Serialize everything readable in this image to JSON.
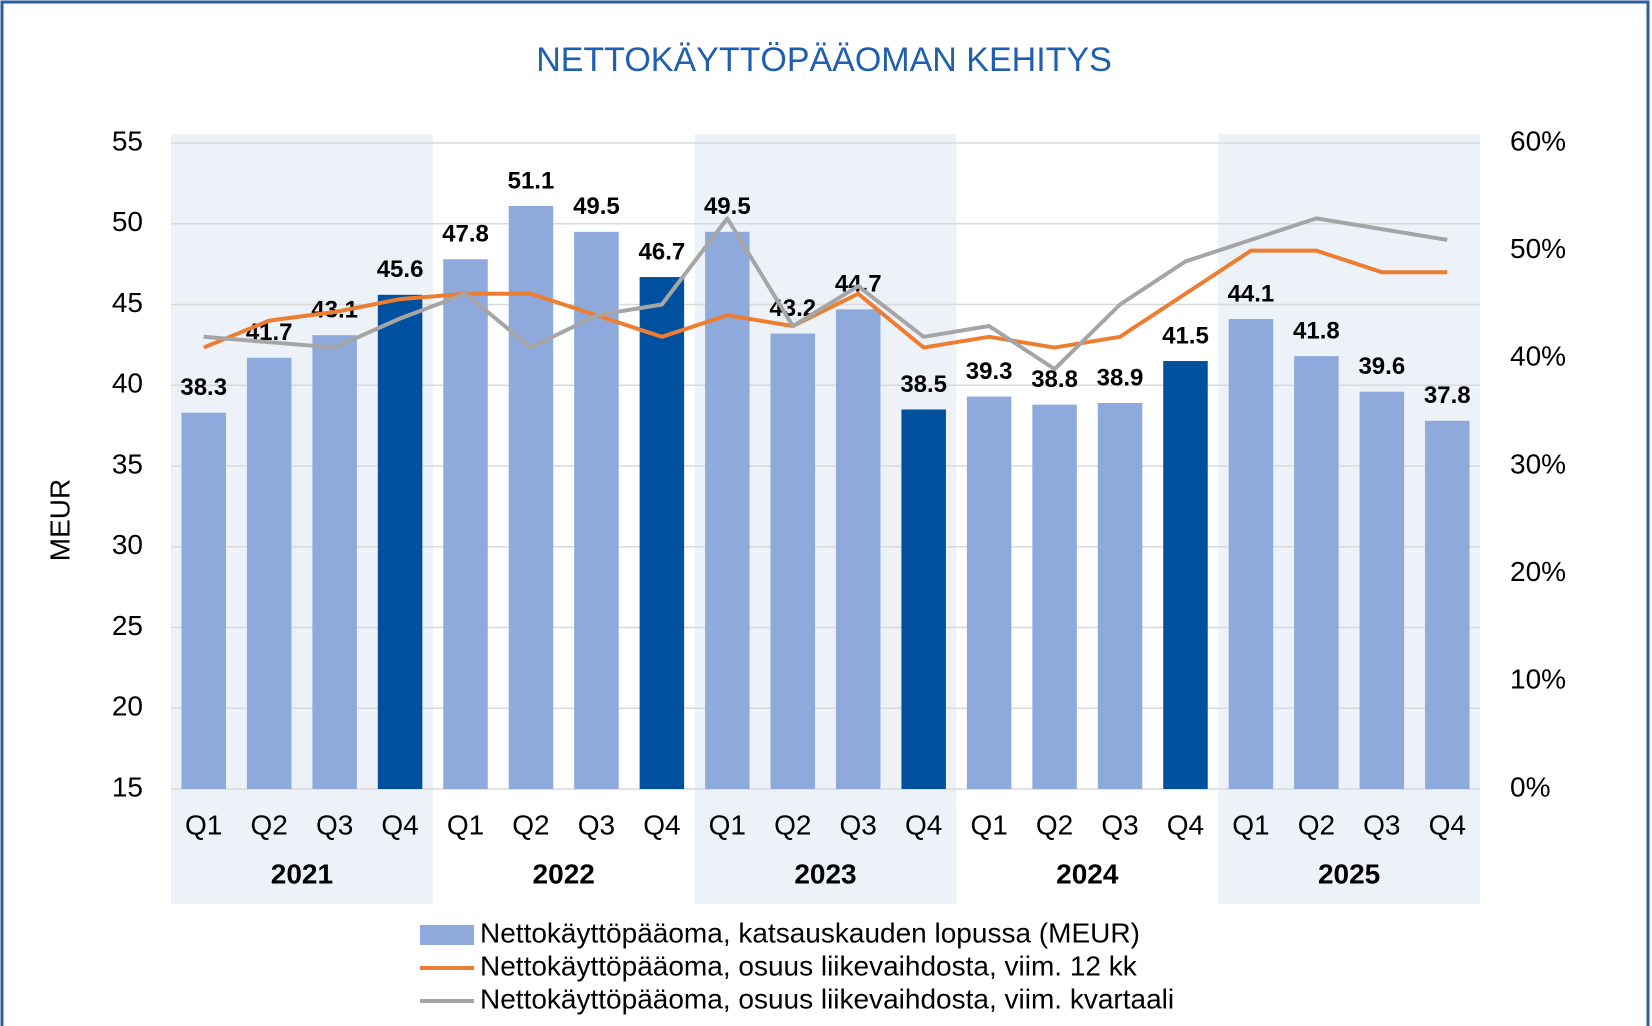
{
  "chart_data": {
    "type": "bar_line",
    "title": "NETTOKÄYTTÖPÄÄOMAN KEHITYS",
    "ylabel": "MEUR",
    "categories": [
      "Q1",
      "Q2",
      "Q3",
      "Q4",
      "Q1",
      "Q2",
      "Q3",
      "Q4",
      "Q1",
      "Q2",
      "Q3",
      "Q4",
      "Q1",
      "Q2",
      "Q3",
      "Q4",
      "Q1",
      "Q2",
      "Q3",
      "Q4"
    ],
    "years": [
      "2021",
      "2022",
      "2023",
      "2024",
      "2025"
    ],
    "year_shading": "#edf2f9",
    "series": [
      {
        "name": "Nettokäyttöpääoma, katsauskauden lopussa (MEUR)",
        "type": "bar",
        "color": "#8eaadc",
        "bar_colors": [
          "#8eaadc",
          "#8eaadc",
          "#8eaadc",
          "#0050a0",
          "#8eaadc",
          "#8eaadc",
          "#8eaadc",
          "#0050a0",
          "#8eaadc",
          "#8eaadc",
          "#8eaadc",
          "#0050a0",
          "#8eaadc",
          "#8eaadc",
          "#8eaadc",
          "#0050a0",
          "#8eaadc",
          "#8eaadc",
          "#8eaadc",
          "#8eaadc"
        ],
        "values": [
          38.3,
          41.7,
          43.1,
          45.6,
          47.8,
          51.1,
          49.5,
          46.7,
          49.5,
          43.2,
          44.7,
          38.5,
          39.3,
          38.8,
          38.9,
          41.5,
          44.1,
          41.8,
          39.6,
          37.8
        ]
      },
      {
        "name": "Nettokäyttöpääoma, osuus liikevaihdosta, viim. 12 kk",
        "type": "line",
        "axis": "y2",
        "color": "#ed7d31",
        "values": [
          41,
          43.5,
          44.3,
          45.5,
          46,
          46,
          44,
          42,
          44,
          43,
          46,
          41,
          42,
          41,
          42,
          46,
          50,
          50,
          48,
          48
        ]
      },
      {
        "name": "Nettokäyttöpääoma, osuus liikevaihdosta, viim. kvartaali",
        "type": "line",
        "axis": "y2",
        "color": "#a5a5a5",
        "values": [
          42,
          41.5,
          41,
          43.7,
          46,
          41,
          44,
          45,
          53,
          43,
          46.7,
          42,
          43,
          39,
          45,
          49,
          51,
          53,
          52,
          51
        ]
      }
    ],
    "ylim": [
      15,
      55
    ],
    "yticks": [
      15,
      20,
      25,
      30,
      35,
      40,
      45,
      50,
      55
    ],
    "y2lim": [
      0,
      60
    ],
    "y2ticks": [
      {
        "value": 0,
        "label": "0%"
      },
      {
        "value": 10,
        "label": "10%"
      },
      {
        "value": 20,
        "label": "20%"
      },
      {
        "value": 30,
        "label": "30%"
      },
      {
        "value": 40,
        "label": "40%"
      },
      {
        "value": 50,
        "label": "50%"
      },
      {
        "value": 60,
        "label": "60%"
      }
    ],
    "grid": true
  }
}
